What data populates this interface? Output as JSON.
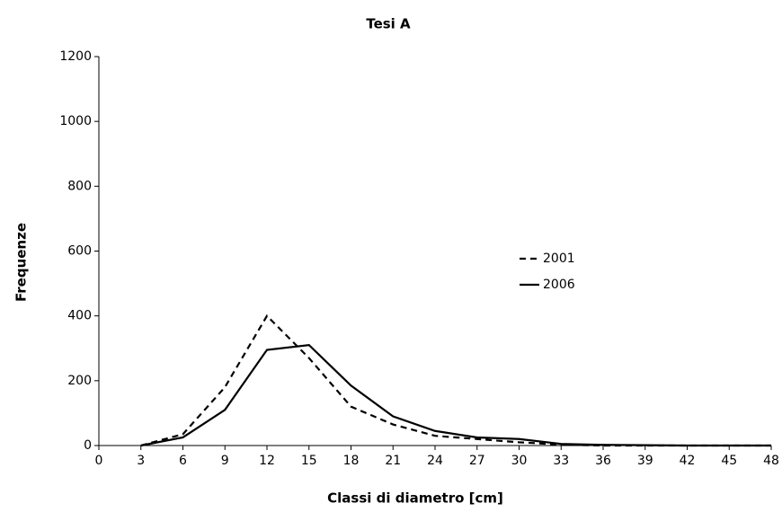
{
  "chart_data": {
    "type": "line",
    "title": "Tesi A",
    "x_label": "Classi di diametro [cm]",
    "y_label": "Frequenze",
    "x": [
      3,
      6,
      9,
      12,
      15,
      18,
      21,
      24,
      27,
      30,
      33,
      36,
      39,
      42,
      45,
      48
    ],
    "series": [
      {
        "name": "2001",
        "color": "#000000",
        "linestyle": "dashed",
        "values": [
          0,
          35,
          180,
          400,
          270,
          120,
          65,
          30,
          20,
          10,
          3,
          0,
          0,
          0,
          0,
          0
        ]
      },
      {
        "name": "2006",
        "color": "#000000",
        "linestyle": "solid",
        "values": [
          0,
          25,
          110,
          295,
          310,
          185,
          90,
          45,
          25,
          20,
          5,
          2,
          1,
          0,
          0,
          0
        ]
      }
    ],
    "xlim": [
      0,
      48
    ],
    "xticks": [
      0,
      3,
      6,
      9,
      12,
      15,
      18,
      21,
      24,
      27,
      30,
      33,
      36,
      39,
      42,
      45,
      48
    ],
    "ylim": [
      0,
      1200
    ],
    "yticks": [
      0,
      200,
      400,
      600,
      800,
      1000,
      1200
    ],
    "grid": false
  }
}
